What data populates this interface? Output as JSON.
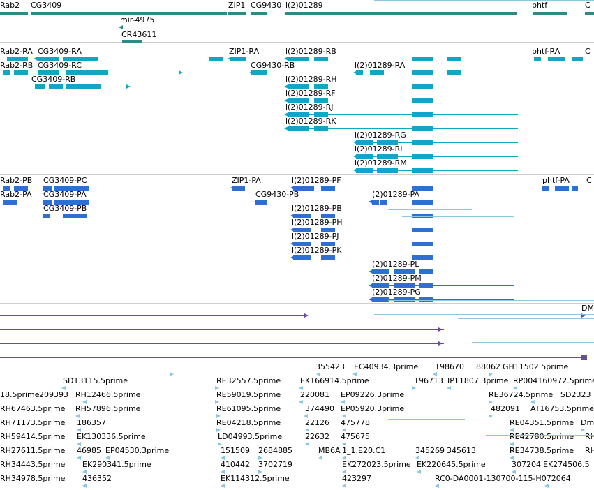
{
  "colors": {
    "gene": "#2e8b84",
    "cyan": "#12a6c6",
    "blue": "#2f6fd1",
    "purple": "#6a4c9c",
    "est": "#8ec7e3"
  },
  "genes": [
    "Rab2",
    "CG3409",
    "mir-4975",
    "CR43611",
    "ZIP1",
    "CG9430",
    "l(2)01289",
    "phtf",
    "C"
  ],
  "flybase_transcripts": [
    "Rab2-RA",
    "Rab2-RB",
    "CG3409-RA",
    "CG3409-RC",
    "CG3409-RB",
    "ZIP1-RA",
    "CG9430-RB",
    "l(2)01289-RB",
    "l(2)01289-RA",
    "l(2)01289-RH",
    "l(2)01289-RF",
    "l(2)01289-RJ",
    "l(2)01289-RK",
    "l(2)01289-RG",
    "l(2)01289-RL",
    "l(2)01289-RM",
    "phtf-RA",
    "C"
  ],
  "refseq_transcripts": [
    "Rab2-PB",
    "Rab2-PA",
    "CG3409-PC",
    "CG3409-PA",
    "CG3409-PB",
    "ZIP1-PA",
    "CG9430-PB",
    "l(2)01289-PF",
    "l(2)01289-PA",
    "l(2)01289-PB",
    "l(2)01289-PH",
    "l(2)01289-PJ",
    "l(2)01289-PK",
    "l(2)01289-PL",
    "l(2)01289-PM",
    "l(2)01289-PG",
    "phtf-PA",
    "C"
  ],
  "dm_label": "DM",
  "est_labels": [
    "355423",
    "EC40934.3prime",
    "198670",
    "88062",
    "GH11502.5prime",
    "SD13115.5prime",
    "RE32557.5prime",
    "EK166914.5prime",
    "196713",
    "IP11807.3prime",
    "RP004160972.5prime",
    "18.5prime",
    "209393",
    "RH12466.5prime",
    "RE59019.5prime",
    "220081",
    "EP09226.3prime",
    "RE36724.5prime",
    "SD2323",
    "RH67463.5prime",
    "RH57896.5prime",
    "RE61095.5prime",
    "374490",
    "EP05920.3prime",
    "482091",
    "AT16753.5prime",
    "RH71173.5prime",
    "186357",
    "RE04218.5prime",
    "22126",
    "475778",
    "RE04351.5prime",
    "Dm",
    "RH59414.5prime",
    "EK130336.5prime",
    "LD04993.5prime",
    "22632",
    "475675",
    "RE42780.5prime",
    "RH",
    "RH27611.5prime",
    "46985",
    "EP04530.3prime",
    "151509",
    "2684885",
    "MB6A",
    "1_1.E20.C1",
    "345269",
    "345613",
    "RE34738.5prime",
    "RH",
    "RH34443.5prime",
    "EK290341.5prime",
    "410442",
    "3702719",
    "EK272023.5prime",
    "EK220645.5prime",
    "307204",
    "EK274506.5",
    "RH34978.5prime",
    "436352",
    "EK114312.5prime",
    "423297",
    "RC0-DA0001-130700-115-H072064"
  ]
}
